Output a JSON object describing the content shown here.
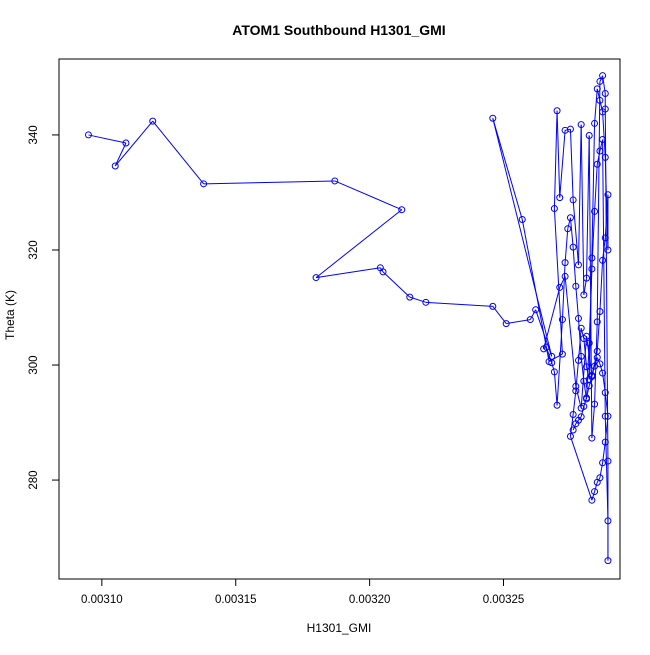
{
  "chart_data": {
    "type": "scatter",
    "title": "ATOM1 Southbound H1301_GMI",
    "xlabel": "H1301_GMI",
    "ylabel": "Theta (K)",
    "xlim": [
      0.003084,
      0.0032935
    ],
    "ylim": [
      262.8,
      353.2
    ],
    "x_ticks": [
      0.0031,
      0.00315,
      0.0032,
      0.00325
    ],
    "x_tick_labels": [
      "0.00310",
      "0.00315",
      "0.00320",
      "0.00325"
    ],
    "y_ticks": [
      280,
      300,
      320,
      340
    ],
    "y_tick_labels": [
      "280",
      "300",
      "320",
      "340"
    ],
    "grid": false,
    "series_color": "#0000ff",
    "marker": "open-circle",
    "connect_points": true,
    "x": [
      0.003095,
      0.003109,
      0.003105,
      0.003119,
      0.003138,
      0.003187,
      0.003212,
      0.00318,
      0.003204,
      0.003205,
      0.003215,
      0.003221,
      0.003246,
      0.003251,
      0.00326,
      0.003262,
      0.003268,
      0.003246,
      0.003257,
      0.003267,
      0.003272,
      0.003269,
      0.00327,
      0.003271,
      0.003273,
      0.003275,
      0.003276,
      0.003278,
      0.003279,
      0.00328,
      0.003281,
      0.003282,
      0.003283,
      0.003284,
      0.003285,
      0.003286,
      0.003287,
      0.003288,
      0.003288,
      0.003289,
      0.003289,
      0.003289,
      0.003288,
      0.003287,
      0.003286,
      0.003285,
      0.003284,
      0.003283,
      0.003282,
      0.003281,
      0.00328,
      0.003279,
      0.003278,
      0.003277,
      0.003276,
      0.003275,
      0.003274,
      0.003273,
      0.003272,
      0.00327,
      0.003269,
      0.003268,
      0.003266,
      0.003265,
      0.003271,
      0.003273,
      0.003277,
      0.003279,
      0.003281,
      0.003283,
      0.003285,
      0.003286,
      0.003287,
      0.003288,
      0.003289,
      0.003289,
      0.003288,
      0.003287,
      0.003286,
      0.003285,
      0.003284,
      0.003283,
      0.003282,
      0.003281,
      0.00328,
      0.003279,
      0.003278,
      0.003277,
      0.003276,
      0.003275,
      0.003283,
      0.003284,
      0.003285,
      0.003286,
      0.003287,
      0.003288,
      0.003289,
      0.003288,
      0.003287,
      0.003286,
      0.003285,
      0.003284,
      0.003283,
      0.003282,
      0.003281,
      0.00328,
      0.003279,
      0.003278,
      0.003277,
      0.003276
    ],
    "y": [
      340.0,
      338.6,
      334.6,
      342.4,
      331.5,
      332.0,
      327.0,
      315.2,
      316.9,
      316.2,
      311.8,
      310.9,
      310.2,
      307.2,
      307.9,
      309.6,
      301.5,
      342.9,
      325.3,
      300.6,
      301.9,
      327.2,
      344.2,
      329.1,
      340.8,
      341.0,
      328.7,
      317.4,
      341.8,
      312.2,
      315.1,
      339.9,
      287.3,
      293.2,
      307.5,
      349.3,
      350.3,
      347.2,
      344.5,
      283.3,
      266.0,
      272.9,
      291.1,
      339.2,
      337.2,
      334.9,
      326.7,
      316.7,
      303.8,
      294.1,
      297.2,
      301.5,
      308.1,
      313.7,
      320.5,
      325.6,
      323.7,
      317.8,
      307.9,
      293.0,
      298.8,
      300.4,
      303.1,
      302.8,
      313.5,
      315.4,
      296.3,
      292.5,
      305.0,
      298.2,
      302.4,
      309.3,
      318.2,
      322.1,
      329.6,
      320.0,
      336.1,
      344.0,
      346.0,
      348.0,
      342.0,
      318.6,
      297.5,
      299.7,
      304.6,
      306.4,
      300.8,
      295.5,
      291.4,
      287.6,
      276.5,
      278.0,
      279.6,
      280.4,
      283.0,
      286.6,
      291.1,
      295.2,
      298.6,
      300.2,
      301.3,
      299.8,
      298.0,
      296.4,
      294.3,
      292.8,
      291.0,
      290.4,
      289.8,
      288.7
    ]
  }
}
